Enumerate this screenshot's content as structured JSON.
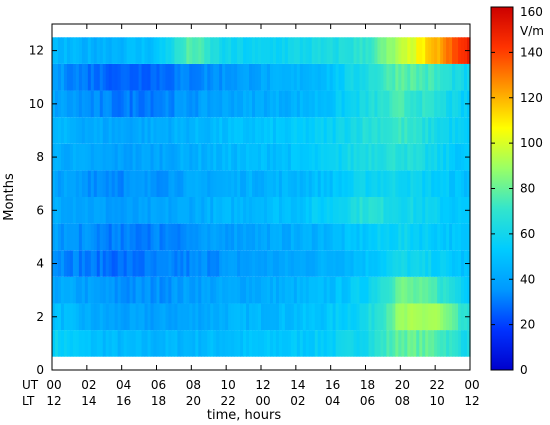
{
  "chart_data": {
    "type": "heatmap",
    "ylabel": "Months",
    "xlabel": "time, hours",
    "x_axis_labels": {
      "ut": "UT",
      "lt": "LT"
    },
    "ut_ticks": [
      {
        "h": 0,
        "label": "00"
      },
      {
        "h": 2,
        "label": "02"
      },
      {
        "h": 4,
        "label": "04"
      },
      {
        "h": 6,
        "label": "06"
      },
      {
        "h": 8,
        "label": "08"
      },
      {
        "h": 10,
        "label": "10"
      },
      {
        "h": 12,
        "label": "12"
      },
      {
        "h": 14,
        "label": "14"
      },
      {
        "h": 16,
        "label": "16"
      },
      {
        "h": 18,
        "label": "18"
      },
      {
        "h": 20,
        "label": "20"
      },
      {
        "h": 22,
        "label": "22"
      },
      {
        "h": 24,
        "label": "00"
      }
    ],
    "lt_ticks": [
      {
        "h": 0,
        "label": "12"
      },
      {
        "h": 2,
        "label": "14"
      },
      {
        "h": 4,
        "label": "16"
      },
      {
        "h": 6,
        "label": "18"
      },
      {
        "h": 8,
        "label": "20"
      },
      {
        "h": 10,
        "label": "22"
      },
      {
        "h": 12,
        "label": "00"
      },
      {
        "h": 14,
        "label": "02"
      },
      {
        "h": 16,
        "label": "04"
      },
      {
        "h": 18,
        "label": "06"
      },
      {
        "h": 20,
        "label": "08"
      },
      {
        "h": 22,
        "label": "10"
      },
      {
        "h": 24,
        "label": "12"
      }
    ],
    "x_range": [
      0,
      24
    ],
    "y_range": [
      0,
      13
    ],
    "y_ticks": [
      0,
      2,
      4,
      6,
      8,
      10,
      12
    ],
    "months": [
      1,
      2,
      3,
      4,
      5,
      6,
      7,
      8,
      9,
      10,
      11,
      12
    ],
    "hours": [
      0,
      2,
      4,
      6,
      8,
      10,
      12,
      14,
      16,
      18,
      20,
      22,
      24
    ],
    "values": [
      [
        58,
        50,
        46,
        45,
        46,
        48,
        50,
        52,
        55,
        62,
        80,
        78,
        60
      ],
      [
        50,
        42,
        38,
        38,
        40,
        44,
        46,
        48,
        52,
        60,
        88,
        92,
        62
      ],
      [
        42,
        38,
        34,
        35,
        38,
        40,
        42,
        44,
        48,
        56,
        82,
        74,
        55
      ],
      [
        36,
        30,
        28,
        30,
        32,
        36,
        38,
        40,
        44,
        50,
        60,
        56,
        48
      ],
      [
        38,
        34,
        30,
        32,
        34,
        38,
        40,
        42,
        46,
        52,
        58,
        54,
        48
      ],
      [
        44,
        40,
        36,
        38,
        42,
        45,
        48,
        50,
        56,
        68,
        62,
        56,
        50
      ],
      [
        40,
        36,
        34,
        36,
        40,
        42,
        44,
        46,
        50,
        58,
        60,
        54,
        48
      ],
      [
        44,
        40,
        38,
        40,
        43,
        46,
        48,
        50,
        55,
        65,
        68,
        58,
        50
      ],
      [
        46,
        42,
        40,
        42,
        45,
        48,
        50,
        52,
        56,
        66,
        72,
        62,
        52
      ],
      [
        40,
        34,
        30,
        32,
        36,
        40,
        42,
        44,
        50,
        62,
        74,
        66,
        52
      ],
      [
        38,
        30,
        26,
        28,
        32,
        36,
        40,
        44,
        50,
        64,
        80,
        72,
        56
      ],
      [
        46,
        44,
        46,
        50,
        78,
        58,
        56,
        60,
        62,
        70,
        92,
        118,
        150
      ]
    ],
    "colorbar": {
      "unit": "V/m",
      "min": 0,
      "max": 160,
      "ticks": [
        0,
        20,
        40,
        60,
        80,
        100,
        120,
        140,
        160
      ],
      "colormap": [
        "#0000cc",
        "#0033ff",
        "#0099ff",
        "#00ccff",
        "#33e5cc",
        "#99ff66",
        "#ffff00",
        "#ff9900",
        "#ff3300",
        "#cc0000"
      ]
    }
  }
}
